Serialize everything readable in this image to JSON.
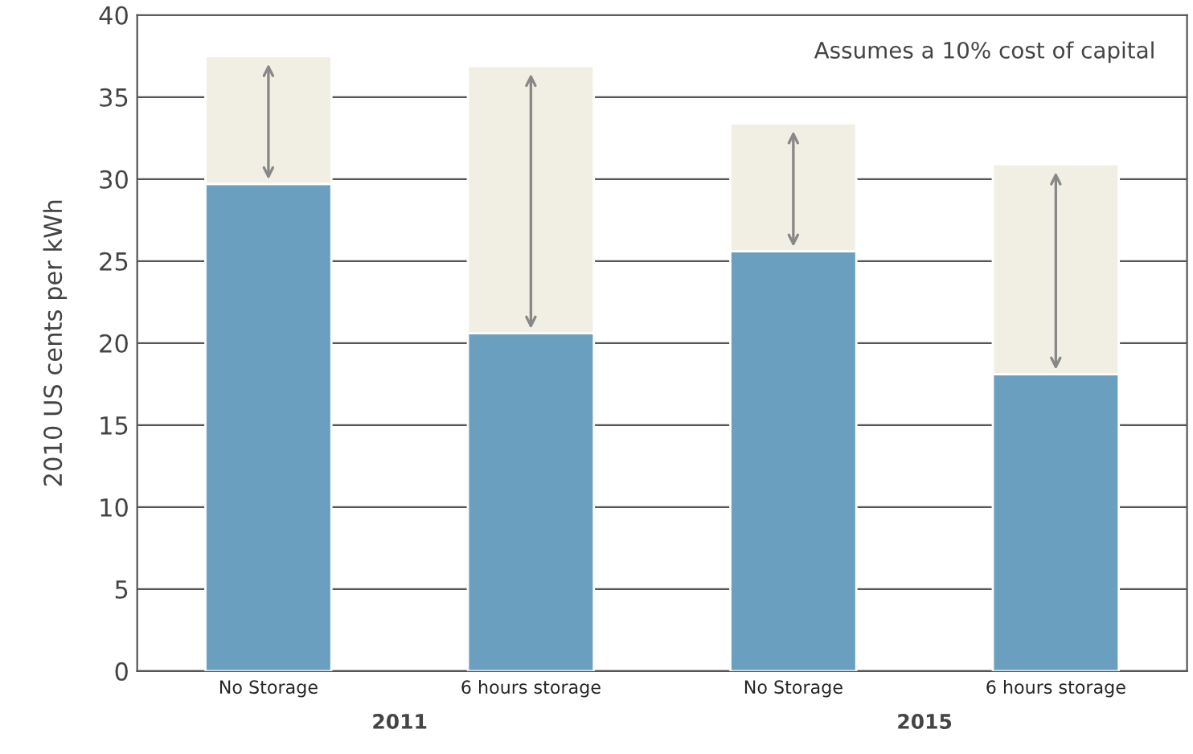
{
  "chart_data": {
    "type": "bar",
    "stacked": true,
    "ylabel": "2010 US cents per kWh",
    "categories": [
      "No Storage",
      "6 hours storage",
      "No Storage",
      "6 hours storage"
    ],
    "series": [
      {
        "color": "#6b9fbf",
        "values": [
          29.7,
          20.6,
          25.6,
          18.1
        ]
      },
      {
        "color": "#f1efe3",
        "values": [
          7.8,
          16.3,
          7.8,
          12.8
        ]
      }
    ],
    "ylim": [
      0,
      40
    ],
    "yticks": [
      0,
      5,
      10,
      15,
      20,
      25,
      30,
      35,
      40
    ],
    "grid": "y",
    "annotations": [
      "Assumes a 10% cost of capital",
      "2011",
      "2015"
    ]
  }
}
